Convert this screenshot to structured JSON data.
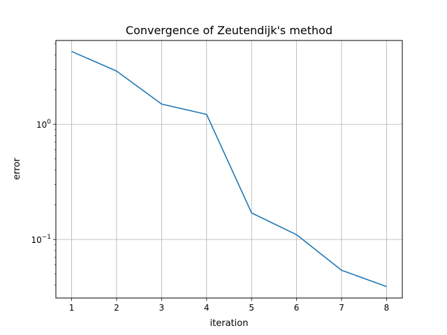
{
  "chart_data": {
    "type": "line",
    "title": "Convergence of Zeutendijk's method",
    "xlabel": "iteration",
    "ylabel": "error",
    "yscale": "log",
    "grid": true,
    "x": [
      1,
      2,
      3,
      4,
      5,
      6,
      7,
      8
    ],
    "xlim": [
      0.65,
      8.35
    ],
    "xticks": [
      "1",
      "2",
      "3",
      "4",
      "5",
      "6",
      "7",
      "8"
    ],
    "ylim": [
      0.031,
      5.35
    ],
    "ytick_values": [
      0.1,
      1
    ],
    "ytick_labels": [
      {
        "base": "10",
        "exp": "−1"
      },
      {
        "base": "10",
        "exp": "0"
      }
    ],
    "series": [
      {
        "color": "#1f77b4",
        "values": [
          4.3,
          2.9,
          1.5,
          1.22,
          0.17,
          0.11,
          0.054,
          0.039
        ]
      }
    ]
  }
}
